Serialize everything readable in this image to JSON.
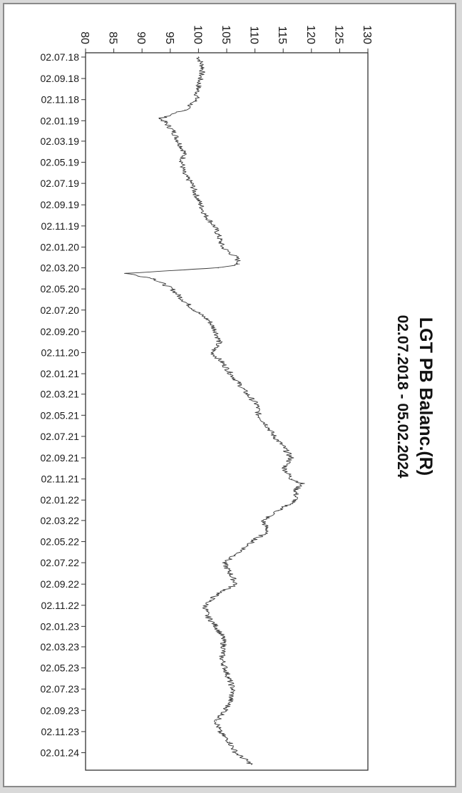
{
  "chart_data": {
    "type": "line",
    "title": "LGT PB Balanc.(R)",
    "subtitle": "02.07.2018 - 05.02.2024",
    "xlabel": "",
    "ylabel": "",
    "orientation": "rotated-90-clockwise",
    "value_axis_ticks": [
      "80",
      "85",
      "90",
      "95",
      "100",
      "105",
      "110",
      "115",
      "120",
      "125",
      "130"
    ],
    "ylim": [
      80,
      130
    ],
    "date_axis_ticks": [
      "02.07.18",
      "02.09.18",
      "02.11.18",
      "02.01.19",
      "02.03.19",
      "02.05.19",
      "02.07.19",
      "02.09.19",
      "02.11.19",
      "02.01.20",
      "02.03.20",
      "02.05.20",
      "02.07.20",
      "02.09.20",
      "02.11.20",
      "02.01.21",
      "02.03.21",
      "02.05.21",
      "02.07.21",
      "02.09.21",
      "02.11.21",
      "02.01.22",
      "02.03.22",
      "02.05.22",
      "02.07.22",
      "02.09.22",
      "02.11.22",
      "02.01.23",
      "02.03.23",
      "02.05.23",
      "02.07.23",
      "02.09.23",
      "02.11.23",
      "02.01.24"
    ],
    "grid": false,
    "line_color": "#3a3a3a",
    "series": [
      {
        "points": [
          [
            "02.07.18",
            100
          ],
          [
            "02.08.18",
            100.8
          ],
          [
            "02.09.18",
            100.3
          ],
          [
            "02.10.18",
            99.9
          ],
          [
            "02.11.18",
            99.6
          ],
          [
            "02.12.18",
            97.6
          ],
          [
            "27.12.18",
            93.2
          ],
          [
            "02.01.19",
            93.8
          ],
          [
            "02.02.19",
            95.6
          ],
          [
            "02.03.19",
            96.4
          ],
          [
            "02.04.19",
            97.5
          ],
          [
            "02.05.19",
            97.1
          ],
          [
            "02.06.19",
            97.3
          ],
          [
            "02.07.19",
            98.8
          ],
          [
            "02.08.19",
            99.5
          ],
          [
            "02.09.19",
            100.4
          ],
          [
            "02.10.19",
            101.2
          ],
          [
            "02.11.19",
            102.8
          ],
          [
            "02.12.19",
            103.6
          ],
          [
            "02.01.20",
            104.2
          ],
          [
            "02.02.20",
            106.8
          ],
          [
            "20.02.20",
            107.2
          ],
          [
            "02.03.20",
            103.5
          ],
          [
            "18.03.20",
            87.2
          ],
          [
            "02.04.20",
            92.1
          ],
          [
            "02.05.20",
            95.3
          ],
          [
            "02.06.20",
            97.2
          ],
          [
            "02.07.20",
            99.3
          ],
          [
            "02.08.20",
            101.9
          ],
          [
            "02.09.20",
            103.1
          ],
          [
            "02.10.20",
            103.7
          ],
          [
            "02.11.20",
            102.4
          ],
          [
            "02.12.20",
            104.3
          ],
          [
            "02.01.21",
            105.7
          ],
          [
            "02.02.21",
            107.3
          ],
          [
            "02.03.21",
            108.6
          ],
          [
            "02.04.21",
            110.4
          ],
          [
            "02.05.21",
            110.6
          ],
          [
            "02.06.21",
            112.2
          ],
          [
            "02.07.21",
            113.4
          ],
          [
            "02.08.21",
            115.1
          ],
          [
            "02.09.21",
            116.4
          ],
          [
            "02.10.21",
            115.2
          ],
          [
            "02.11.21",
            116.5
          ],
          [
            "15.11.21",
            118.3
          ],
          [
            "02.12.21",
            117.3
          ],
          [
            "02.01.22",
            117.2
          ],
          [
            "02.02.22",
            114.1
          ],
          [
            "02.03.22",
            111.4
          ],
          [
            "02.04.22",
            112.3
          ],
          [
            "02.05.22",
            109.5
          ],
          [
            "02.06.22",
            107.3
          ],
          [
            "02.07.22",
            104.5
          ],
          [
            "02.08.22",
            105.6
          ],
          [
            "02.09.22",
            106.7
          ],
          [
            "02.10.22",
            103.2
          ],
          [
            "02.11.22",
            101.2
          ],
          [
            "02.12.22",
            101.5
          ],
          [
            "02.01.23",
            103.1
          ],
          [
            "02.02.23",
            104.3
          ],
          [
            "02.03.23",
            104.5
          ],
          [
            "02.04.23",
            104.1
          ],
          [
            "02.05.23",
            104.7
          ],
          [
            "02.06.23",
            105.4
          ],
          [
            "02.07.23",
            106.1
          ],
          [
            "02.08.23",
            105.7
          ],
          [
            "02.09.23",
            104.8
          ],
          [
            "02.10.23",
            103.2
          ],
          [
            "02.11.23",
            103.7
          ],
          [
            "02.12.23",
            105.5
          ],
          [
            "02.01.24",
            106.6
          ],
          [
            "05.02.24",
            109.4
          ]
        ]
      }
    ]
  }
}
